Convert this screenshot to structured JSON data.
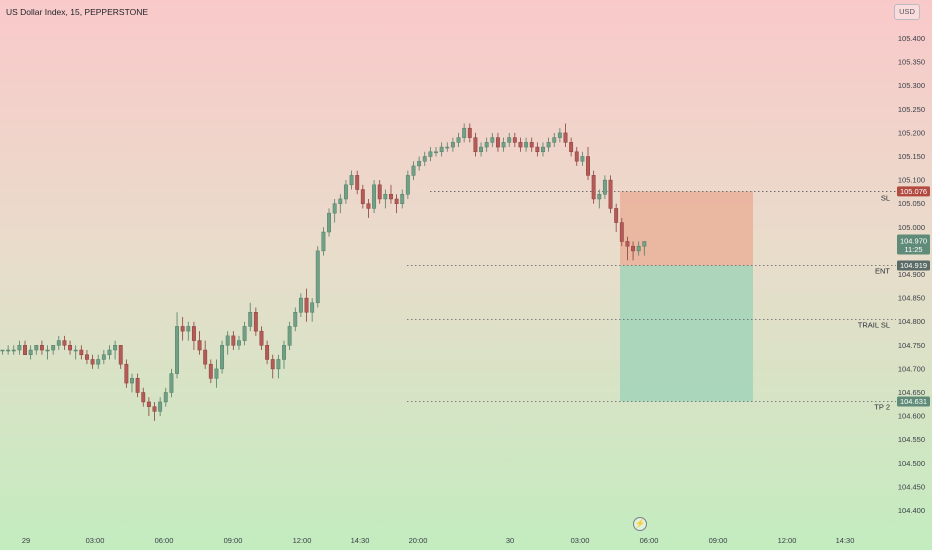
{
  "header": {
    "title": "US Dollar Index, 15, PEPPERSTONE",
    "currency": "USD"
  },
  "colors": {
    "up_fill": "#72a087",
    "up_stroke": "#4f7f66",
    "down_fill": "#b55a57",
    "down_stroke": "#8c3f3c",
    "stop_zone": "#eab09a",
    "target_zone": "#a2d4b8",
    "sl_tag": "#b24a40",
    "price_tag": "#5f8b78",
    "entry_tag": "#5a6a66"
  },
  "chart_data": {
    "type": "candlestick",
    "ylim": [
      104.36,
      105.45
    ],
    "y_ticks": [
      "104.400",
      "104.450",
      "104.500",
      "104.550",
      "104.600",
      "104.650",
      "104.700",
      "104.750",
      "104.800",
      "104.850",
      "104.900",
      "104.950",
      "105.000",
      "105.050",
      "105.100",
      "105.150",
      "105.200",
      "105.250",
      "105.300",
      "105.350",
      "105.400"
    ],
    "x_tick_labels": [
      "29",
      "03:00",
      "06:00",
      "09:00",
      "12:00",
      "14:30",
      "20:00",
      "30",
      "03:00",
      "06:00",
      "09:00",
      "12:00",
      "14:30"
    ],
    "candles": [
      [
        104.74,
        104.74,
        104.73,
        104.74
      ],
      [
        104.74,
        104.75,
        104.73,
        104.74
      ],
      [
        104.74,
        104.75,
        104.73,
        104.74
      ],
      [
        104.74,
        104.76,
        104.73,
        104.75
      ],
      [
        104.75,
        104.76,
        104.73,
        104.73
      ],
      [
        104.73,
        104.75,
        104.72,
        104.74
      ],
      [
        104.74,
        104.75,
        104.73,
        104.75
      ],
      [
        104.75,
        104.76,
        104.73,
        104.74
      ],
      [
        104.74,
        104.75,
        104.72,
        104.74
      ],
      [
        104.74,
        104.75,
        104.73,
        104.75
      ],
      [
        104.75,
        104.77,
        104.74,
        104.76
      ],
      [
        104.76,
        104.77,
        104.74,
        104.75
      ],
      [
        104.75,
        104.76,
        104.73,
        104.74
      ],
      [
        104.74,
        104.75,
        104.72,
        104.74
      ],
      [
        104.74,
        104.75,
        104.72,
        104.73
      ],
      [
        104.73,
        104.74,
        104.71,
        104.72
      ],
      [
        104.72,
        104.73,
        104.7,
        104.71
      ],
      [
        104.71,
        104.73,
        104.7,
        104.72
      ],
      [
        104.72,
        104.74,
        104.71,
        104.73
      ],
      [
        104.73,
        104.75,
        104.72,
        104.74
      ],
      [
        104.74,
        104.76,
        104.72,
        104.75
      ],
      [
        104.75,
        104.75,
        104.7,
        104.71
      ],
      [
        104.71,
        104.72,
        104.66,
        104.67
      ],
      [
        104.67,
        104.69,
        104.65,
        104.68
      ],
      [
        104.68,
        104.69,
        104.64,
        104.65
      ],
      [
        104.65,
        104.66,
        104.62,
        104.63
      ],
      [
        104.63,
        104.64,
        104.6,
        104.62
      ],
      [
        104.62,
        104.63,
        104.59,
        104.61
      ],
      [
        104.61,
        104.64,
        104.6,
        104.63
      ],
      [
        104.63,
        104.66,
        104.62,
        104.65
      ],
      [
        104.65,
        104.7,
        104.64,
        104.69
      ],
      [
        104.69,
        104.82,
        104.68,
        104.79
      ],
      [
        104.79,
        104.81,
        104.76,
        104.78
      ],
      [
        104.78,
        104.8,
        104.76,
        104.79
      ],
      [
        104.79,
        104.8,
        104.74,
        104.76
      ],
      [
        104.76,
        104.78,
        104.73,
        104.74
      ],
      [
        104.74,
        104.76,
        104.7,
        104.71
      ],
      [
        104.71,
        104.72,
        104.67,
        104.68
      ],
      [
        104.68,
        104.72,
        104.66,
        104.7
      ],
      [
        104.7,
        104.76,
        104.69,
        104.75
      ],
      [
        104.75,
        104.78,
        104.73,
        104.77
      ],
      [
        104.77,
        104.78,
        104.74,
        104.75
      ],
      [
        104.75,
        104.77,
        104.74,
        104.76
      ],
      [
        104.76,
        104.8,
        104.75,
        104.79
      ],
      [
        104.79,
        104.84,
        104.78,
        104.82
      ],
      [
        104.82,
        104.83,
        104.77,
        104.78
      ],
      [
        104.78,
        104.79,
        104.74,
        104.75
      ],
      [
        104.75,
        104.76,
        104.71,
        104.72
      ],
      [
        104.72,
        104.73,
        104.68,
        104.7
      ],
      [
        104.7,
        104.73,
        104.68,
        104.72
      ],
      [
        104.72,
        104.76,
        104.7,
        104.75
      ],
      [
        104.75,
        104.8,
        104.74,
        104.79
      ],
      [
        104.79,
        104.83,
        104.78,
        104.82
      ],
      [
        104.82,
        104.86,
        104.81,
        104.85
      ],
      [
        104.85,
        104.87,
        104.8,
        104.82
      ],
      [
        104.82,
        104.85,
        104.8,
        104.84
      ],
      [
        104.84,
        104.96,
        104.83,
        104.95
      ],
      [
        104.95,
        105.0,
        104.94,
        104.99
      ],
      [
        104.99,
        105.04,
        104.98,
        105.03
      ],
      [
        105.03,
        105.06,
        105.01,
        105.05
      ],
      [
        105.05,
        105.07,
        105.03,
        105.06
      ],
      [
        105.06,
        105.1,
        105.05,
        105.09
      ],
      [
        105.09,
        105.12,
        105.08,
        105.11
      ],
      [
        105.11,
        105.12,
        105.07,
        105.08
      ],
      [
        105.08,
        105.09,
        105.04,
        105.05
      ],
      [
        105.05,
        105.06,
        105.02,
        105.04
      ],
      [
        105.04,
        105.1,
        105.03,
        105.09
      ],
      [
        105.09,
        105.1,
        105.05,
        105.06
      ],
      [
        105.06,
        105.08,
        105.04,
        105.07
      ],
      [
        105.07,
        105.09,
        105.05,
        105.06
      ],
      [
        105.06,
        105.07,
        105.03,
        105.05
      ],
      [
        105.05,
        105.08,
        105.04,
        105.07
      ],
      [
        105.07,
        105.12,
        105.06,
        105.11
      ],
      [
        105.11,
        105.14,
        105.1,
        105.13
      ],
      [
        105.13,
        105.15,
        105.12,
        105.14
      ],
      [
        105.14,
        105.16,
        105.13,
        105.15
      ],
      [
        105.15,
        105.17,
        105.14,
        105.16
      ],
      [
        105.16,
        105.17,
        105.15,
        105.16
      ],
      [
        105.16,
        105.18,
        105.15,
        105.17
      ],
      [
        105.17,
        105.18,
        105.16,
        105.17
      ],
      [
        105.17,
        105.19,
        105.16,
        105.18
      ],
      [
        105.18,
        105.2,
        105.17,
        105.19
      ],
      [
        105.19,
        105.22,
        105.18,
        105.21
      ],
      [
        105.21,
        105.22,
        105.18,
        105.19
      ],
      [
        105.19,
        105.2,
        105.15,
        105.16
      ],
      [
        105.16,
        105.18,
        105.15,
        105.17
      ],
      [
        105.17,
        105.19,
        105.16,
        105.18
      ],
      [
        105.18,
        105.2,
        105.17,
        105.19
      ],
      [
        105.19,
        105.2,
        105.16,
        105.17
      ],
      [
        105.17,
        105.19,
        105.16,
        105.18
      ],
      [
        105.18,
        105.2,
        105.17,
        105.19
      ],
      [
        105.19,
        105.2,
        105.17,
        105.18
      ],
      [
        105.18,
        105.19,
        105.16,
        105.17
      ],
      [
        105.17,
        105.19,
        105.16,
        105.18
      ],
      [
        105.18,
        105.19,
        105.16,
        105.17
      ],
      [
        105.17,
        105.18,
        105.15,
        105.16
      ],
      [
        105.16,
        105.18,
        105.15,
        105.17
      ],
      [
        105.17,
        105.19,
        105.16,
        105.18
      ],
      [
        105.18,
        105.2,
        105.17,
        105.19
      ],
      [
        105.19,
        105.21,
        105.18,
        105.2
      ],
      [
        105.2,
        105.22,
        105.17,
        105.18
      ],
      [
        105.18,
        105.19,
        105.15,
        105.16
      ],
      [
        105.16,
        105.17,
        105.13,
        105.14
      ],
      [
        105.14,
        105.16,
        105.13,
        105.15
      ],
      [
        105.15,
        105.17,
        105.1,
        105.11
      ],
      [
        105.11,
        105.12,
        105.05,
        105.06
      ],
      [
        105.06,
        105.08,
        105.04,
        105.07
      ],
      [
        105.07,
        105.11,
        105.06,
        105.1
      ],
      [
        105.1,
        105.11,
        105.03,
        105.04
      ],
      [
        105.04,
        105.05,
        104.99,
        105.01
      ],
      [
        105.01,
        105.02,
        104.96,
        104.97
      ],
      [
        104.97,
        104.98,
        104.93,
        104.96
      ],
      [
        104.96,
        104.97,
        104.93,
        104.95
      ],
      [
        104.95,
        104.97,
        104.94,
        104.96
      ],
      [
        104.96,
        104.97,
        104.94,
        104.97
      ]
    ]
  },
  "position": {
    "sl_label": "SL",
    "sl_price": "105.076",
    "entry_label": "ENT",
    "entry_price": "104.919",
    "trail_label": "TRAIL SL",
    "trail_value": 104.805,
    "tp_label": "TP 2",
    "tp_price": "104.631"
  },
  "last_price": {
    "price": "104.970",
    "countdown": "11:25"
  }
}
